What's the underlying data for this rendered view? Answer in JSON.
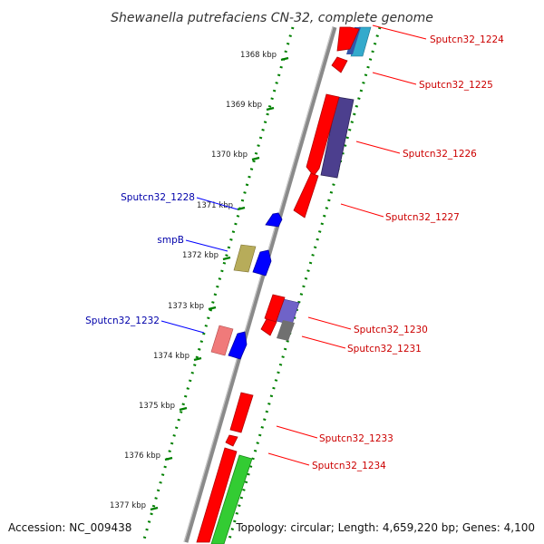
{
  "title": "Shewanella putrefaciens CN-32, complete genome",
  "footer": {
    "accession": "Accession: NC_009438",
    "summary": "Topology: circular; Length: 4,659,220 bp; Genes: 4,100"
  },
  "ticks": [
    "1368 kbp",
    "1369 kbp",
    "1370 kbp",
    "1371 kbp",
    "1372 kbp",
    "1373 kbp",
    "1374 kbp",
    "1375 kbp",
    "1376 kbp",
    "1377 kbp"
  ],
  "colors": {
    "forward_cds": "#ff0000",
    "forward_dark": "#b00000",
    "reverse_cds": "#0000ff",
    "reverse_dark": "#0000a0",
    "forward_label": "#cc0000",
    "reverse_label": "#0000aa",
    "backbone": "#8a8a8a",
    "dots": "#008000"
  },
  "genes_forward": [
    {
      "name": "Sputcn32_1224"
    },
    {
      "name": "Sputcn32_1225"
    },
    {
      "name": "Sputcn32_1226"
    },
    {
      "name": "Sputcn32_1227"
    },
    {
      "name": "Sputcn32_1230"
    },
    {
      "name": "Sputcn32_1231"
    },
    {
      "name": "Sputcn32_1233"
    },
    {
      "name": "Sputcn32_1234"
    }
  ],
  "genes_reverse": [
    {
      "name": "Sputcn32_1228"
    },
    {
      "name": "smpB"
    },
    {
      "name": "Sputcn32_1232"
    }
  ]
}
